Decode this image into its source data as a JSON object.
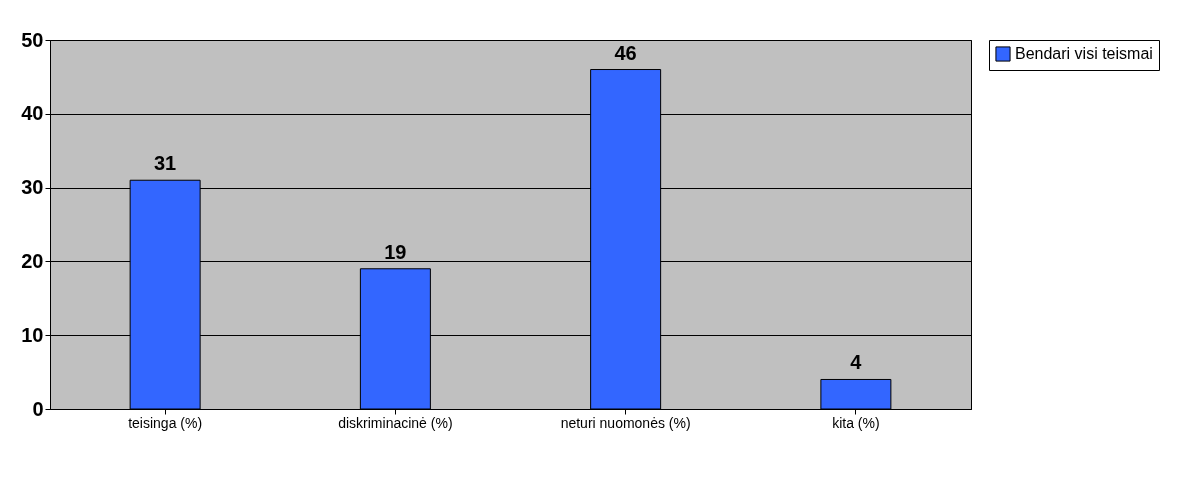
{
  "chart_data": {
    "type": "bar",
    "categories": [
      "teisinga (%)",
      "diskriminacinė (%)",
      "neturi nuomonės (%)",
      "kita (%)"
    ],
    "series": [
      {
        "name": "Bendari visi teismai",
        "color": "#3366ff",
        "values": [
          31,
          19,
          46,
          4
        ]
      }
    ],
    "ylim": [
      0,
      50
    ],
    "yticks": [
      0,
      10,
      20,
      30,
      40,
      50
    ],
    "grid": "y",
    "legend": "right",
    "data_labels": true
  }
}
